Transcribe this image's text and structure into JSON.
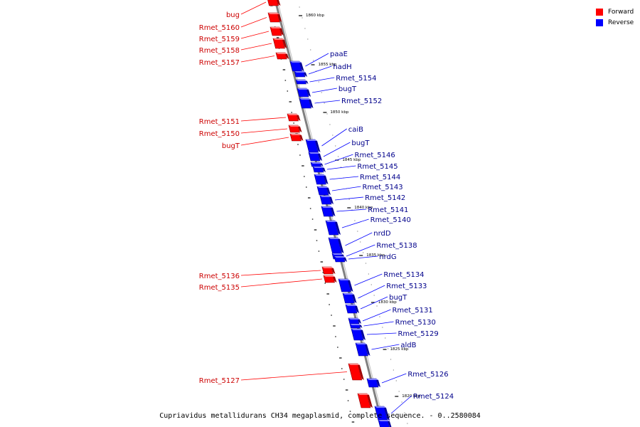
{
  "caption": "Cupriavidus metallidurans CH34 megaplasmid, complete sequence. - 0..2580084",
  "legend": [
    {
      "label": "Forward",
      "color": "#ff0000"
    },
    {
      "label": "Reverse",
      "color": "#0000ff"
    }
  ],
  "colors": {
    "forward": "#ff0000",
    "reverse": "#0000ff",
    "forward_text": "#cc0000",
    "reverse_text": "#00008b",
    "backbone": "#808080",
    "ticks": "#000000"
  },
  "scale_ticks": [
    "1860 kbp",
    "1855 kbp",
    "1850 kbp",
    "1845 kbp",
    "1840 kbp",
    "1835 kbp",
    "1830 kbp",
    "1825 kbp",
    "1820 kbp"
  ],
  "forward_genes": [
    "bug",
    "Rmet_5160",
    "Rmet_5159",
    "Rmet_5158",
    "Rmet_5157",
    "Rmet_5151",
    "Rmet_5150",
    "bugT",
    "Rmet_5136",
    "Rmet_5135",
    "Rmet_5127"
  ],
  "reverse_genes": [
    "paaE",
    "hadH",
    "Rmet_5154",
    "bugT",
    "Rmet_5152",
    "caiB",
    "bugT",
    "Rmet_5146",
    "Rmet_5145",
    "Rmet_5144",
    "Rmet_5143",
    "Rmet_5142",
    "Rmet_5141",
    "Rmet_5140",
    "nrdD",
    "Rmet_5138",
    "nrdG",
    "Rmet_5134",
    "Rmet_5133",
    "bugT",
    "Rmet_5131",
    "Rmet_5130",
    "Rmet_5129",
    "aldB",
    "Rmet_5126",
    "Rmet_5124"
  ]
}
